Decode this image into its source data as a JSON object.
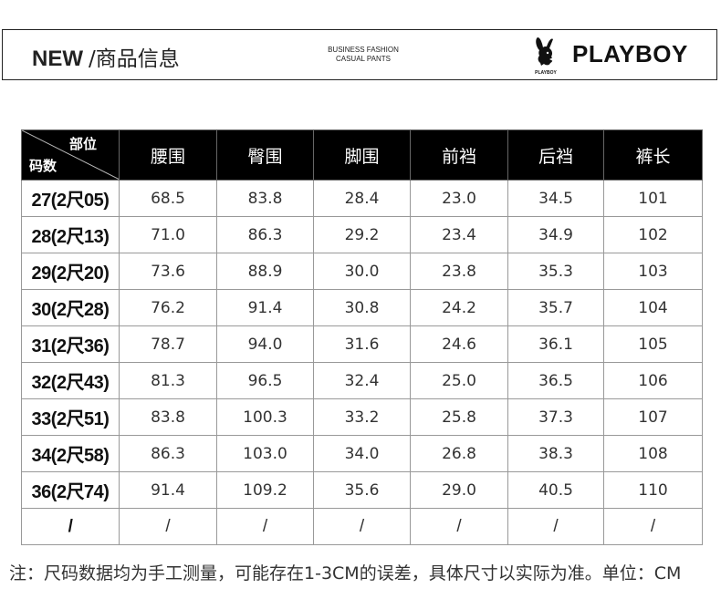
{
  "header": {
    "new_label": "NEW",
    "title": "/商品信息",
    "sub_line1": "BUSINESS FASHION",
    "sub_line2": "CASUAL PANTS",
    "logo_text": "PLAYBOY",
    "brand": "PLAYBOY"
  },
  "table": {
    "corner_top": "部位",
    "corner_bottom": "码数",
    "columns": [
      "腰围",
      "臀围",
      "脚围",
      "前裆",
      "后裆",
      "裤长"
    ],
    "rows": [
      {
        "size": "27(2尺05)",
        "values": [
          "68.5",
          "83.8",
          "28.4",
          "23.0",
          "34.5",
          "101"
        ]
      },
      {
        "size": "28(2尺13)",
        "values": [
          "71.0",
          "86.3",
          "29.2",
          "23.4",
          "34.9",
          "102"
        ]
      },
      {
        "size": "29(2尺20)",
        "values": [
          "73.6",
          "88.9",
          "30.0",
          "23.8",
          "35.3",
          "103"
        ]
      },
      {
        "size": "30(2尺28)",
        "values": [
          "76.2",
          "91.4",
          "30.8",
          "24.2",
          "35.7",
          "104"
        ]
      },
      {
        "size": "31(2尺36)",
        "values": [
          "78.7",
          "94.0",
          "31.6",
          "24.6",
          "36.1",
          "105"
        ]
      },
      {
        "size": "32(2尺43)",
        "values": [
          "81.3",
          "96.5",
          "32.4",
          "25.0",
          "36.5",
          "106"
        ]
      },
      {
        "size": "33(2尺51)",
        "values": [
          "83.8",
          "100.3",
          "33.2",
          "25.8",
          "37.3",
          "107"
        ]
      },
      {
        "size": "34(2尺58)",
        "values": [
          "86.3",
          "103.0",
          "34.0",
          "26.8",
          "38.3",
          "108"
        ]
      },
      {
        "size": "36(2尺74)",
        "values": [
          "91.4",
          "109.2",
          "35.6",
          "29.0",
          "40.5",
          "110"
        ]
      },
      {
        "size": "/",
        "values": [
          "/",
          "/",
          "/",
          "/",
          "/",
          "/"
        ]
      }
    ]
  },
  "note": "注：尺码数据均为手工测量，可能存在1-3CM的误差，具体尺寸以实际为准。单位：CM"
}
